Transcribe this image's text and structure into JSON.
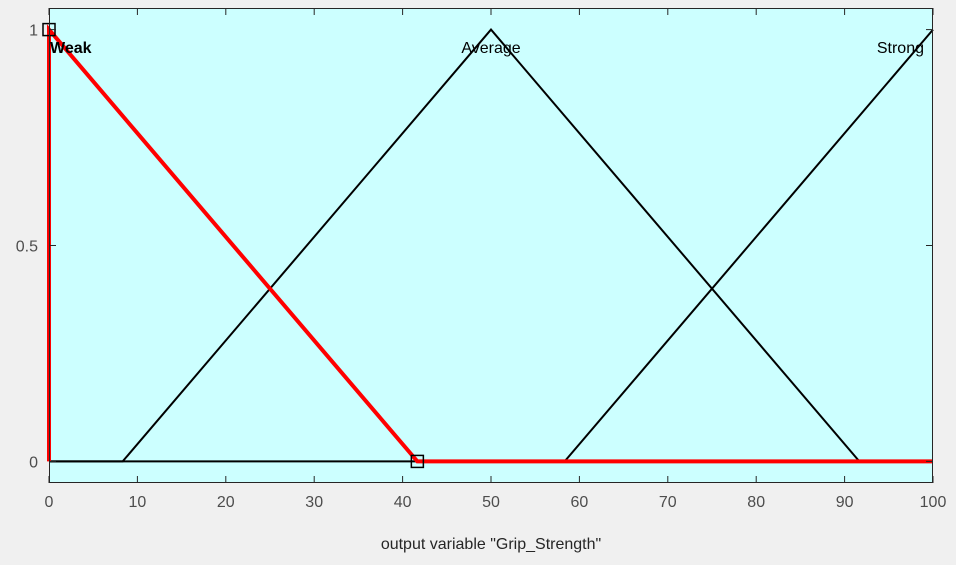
{
  "chart_data": {
    "type": "line",
    "title": "",
    "xlabel": "output variable \"Grip_Strength\"",
    "ylabel": "",
    "xlim": [
      0,
      100
    ],
    "ylim": [
      -0.05,
      1.05
    ],
    "xticks": [
      0,
      10,
      20,
      30,
      40,
      50,
      60,
      70,
      80,
      90,
      100
    ],
    "yticks": [
      0,
      0.5,
      1
    ],
    "ytick_labels": [
      "0",
      "0.5",
      "1"
    ],
    "grid": false,
    "background": "#ccffff",
    "series": [
      {
        "name": "Weak",
        "color": "#ff0000",
        "selected": true,
        "x": [
          0,
          0,
          41.67,
          100
        ],
        "y": [
          0,
          1,
          0,
          0
        ],
        "handles_x": [
          0,
          41.67
        ],
        "handles_y": [
          1,
          0
        ]
      },
      {
        "name": "Average",
        "color": "#000000",
        "selected": false,
        "x": [
          0,
          8.33,
          50,
          91.67,
          100
        ],
        "y": [
          0,
          0,
          1,
          0,
          0
        ]
      },
      {
        "name": "Strong",
        "color": "#000000",
        "selected": false,
        "x": [
          0,
          58.33,
          100
        ],
        "y": [
          0,
          0,
          1
        ]
      }
    ]
  }
}
